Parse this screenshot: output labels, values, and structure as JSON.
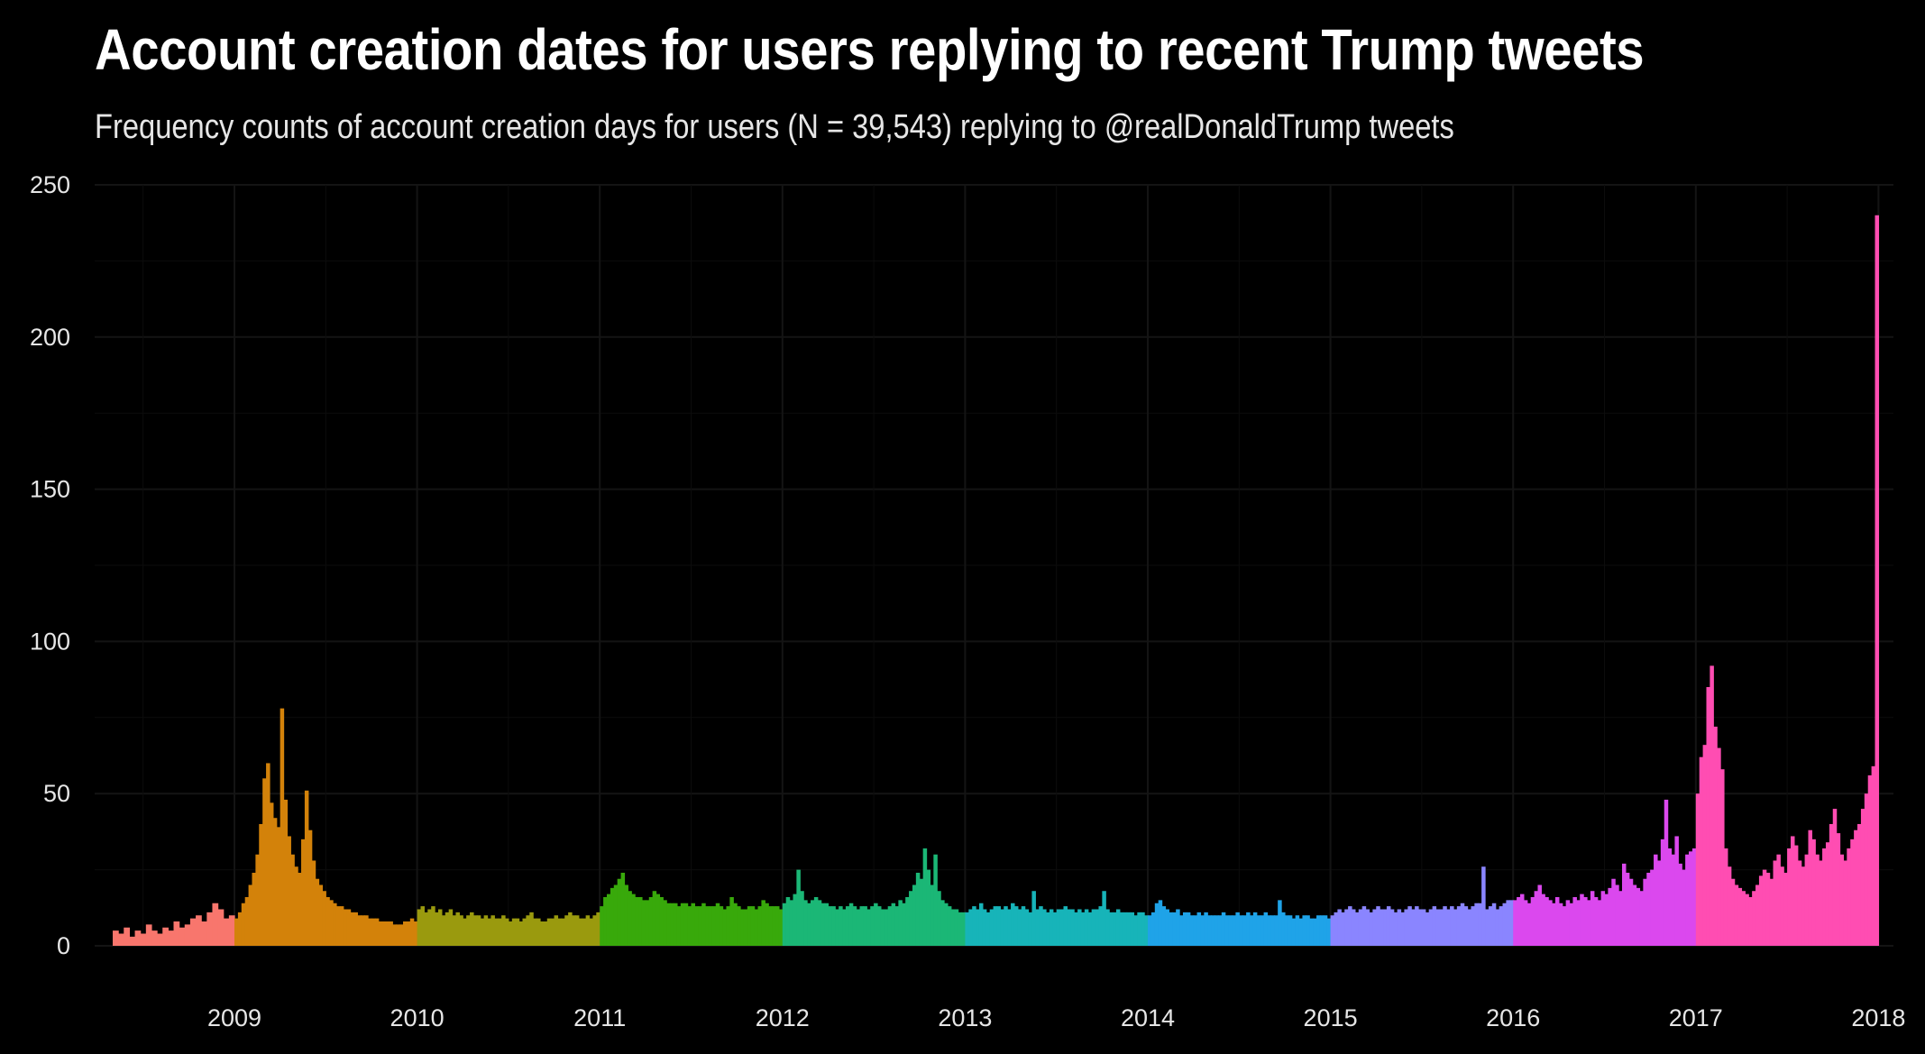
{
  "chart_data": {
    "type": "bar",
    "title": "Account creation dates for users replying to recent Trump tweets",
    "subtitle": "Frequency counts of account creation days for users (N = 39,543) replying to @realDonaldTrump tweets",
    "xlabel": "",
    "ylabel": "",
    "ylim": [
      0,
      250
    ],
    "xlim": [
      "2008-05-01",
      "2018-01-01"
    ],
    "grid": true,
    "background": "#000000",
    "y_ticks": [
      0,
      50,
      100,
      150,
      200,
      250
    ],
    "x_ticks": [
      "2009",
      "2010",
      "2011",
      "2012",
      "2013",
      "2014",
      "2015",
      "2016",
      "2017",
      "2018"
    ],
    "series": [
      {
        "year": "2008",
        "color": "#F8766D",
        "values": [
          5,
          4,
          6,
          3,
          5,
          4,
          7,
          5,
          4,
          6,
          5,
          8,
          6,
          7,
          9,
          10,
          8,
          11,
          14,
          12,
          9,
          10
        ]
      },
      {
        "year": "2009",
        "color": "#D3820A",
        "values": [
          9,
          11,
          14,
          16,
          20,
          24,
          30,
          40,
          55,
          60,
          47,
          42,
          39,
          78,
          48,
          36,
          30,
          26,
          24,
          35,
          51,
          38,
          28,
          22,
          20,
          18,
          16,
          15,
          14,
          13,
          13,
          12,
          12,
          11,
          11,
          10,
          10,
          10,
          9,
          9,
          9,
          8,
          8,
          8,
          8,
          7,
          7,
          7,
          8,
          8,
          9,
          8
        ]
      },
      {
        "year": "2010",
        "color": "#9A9A0E",
        "values": [
          12,
          13,
          11,
          12,
          13,
          11,
          12,
          10,
          11,
          12,
          10,
          11,
          10,
          9,
          10,
          11,
          10,
          10,
          9,
          10,
          9,
          10,
          9,
          9,
          10,
          9,
          8,
          9,
          9,
          8,
          9,
          10,
          11,
          9,
          9,
          8,
          8,
          9,
          9,
          10,
          9,
          9,
          10,
          11,
          10,
          10,
          9,
          9,
          10,
          9,
          10,
          11
        ]
      },
      {
        "year": "2011",
        "color": "#38A90B",
        "values": [
          13,
          16,
          17,
          19,
          20,
          22,
          24,
          20,
          18,
          17,
          16,
          16,
          15,
          15,
          16,
          18,
          17,
          16,
          15,
          14,
          14,
          14,
          13,
          14,
          14,
          13,
          14,
          13,
          13,
          14,
          13,
          13,
          13,
          14,
          13,
          12,
          13,
          16,
          14,
          13,
          12,
          12,
          13,
          13,
          12,
          13,
          15,
          14,
          13,
          13,
          13,
          12
        ]
      },
      {
        "year": "2012",
        "color": "#1BB776",
        "values": [
          14,
          16,
          15,
          17,
          25,
          18,
          15,
          14,
          15,
          16,
          15,
          14,
          14,
          13,
          13,
          12,
          13,
          12,
          13,
          14,
          13,
          12,
          13,
          13,
          12,
          13,
          14,
          13,
          12,
          12,
          13,
          14,
          13,
          15,
          14,
          16,
          18,
          20,
          24,
          22,
          32,
          25,
          20,
          30,
          18,
          15,
          14,
          13,
          12,
          12,
          11,
          11
        ]
      },
      {
        "year": "2013",
        "color": "#17B4B9",
        "values": [
          11,
          12,
          13,
          12,
          14,
          12,
          11,
          12,
          13,
          13,
          12,
          13,
          12,
          14,
          13,
          12,
          13,
          12,
          11,
          18,
          12,
          13,
          12,
          11,
          12,
          11,
          12,
          12,
          13,
          12,
          12,
          11,
          12,
          11,
          12,
          11,
          12,
          12,
          13,
          18,
          12,
          11,
          11,
          12,
          11,
          11,
          11,
          11,
          10,
          11,
          11,
          10
        ]
      },
      {
        "year": "2014",
        "color": "#1FA3E8",
        "values": [
          10,
          11,
          14,
          15,
          13,
          12,
          11,
          11,
          12,
          10,
          11,
          11,
          10,
          10,
          11,
          10,
          11,
          10,
          10,
          10,
          10,
          11,
          10,
          10,
          10,
          11,
          10,
          10,
          11,
          10,
          11,
          10,
          10,
          11,
          10,
          10,
          10,
          15,
          11,
          10,
          10,
          9,
          10,
          9,
          10,
          10,
          9,
          9,
          10,
          10,
          10,
          9
        ]
      },
      {
        "year": "2015",
        "color": "#8A85FF",
        "values": [
          10,
          11,
          12,
          11,
          12,
          13,
          12,
          11,
          12,
          13,
          12,
          11,
          12,
          13,
          12,
          12,
          13,
          12,
          11,
          12,
          11,
          12,
          13,
          12,
          13,
          12,
          12,
          11,
          12,
          13,
          12,
          12,
          13,
          12,
          13,
          12,
          13,
          14,
          13,
          12,
          13,
          14,
          14,
          26,
          12,
          13,
          14,
          12,
          13,
          14,
          15,
          15
        ]
      },
      {
        "year": "2016",
        "color": "#DB48EE",
        "values": [
          15,
          16,
          17,
          15,
          14,
          16,
          18,
          20,
          17,
          16,
          15,
          14,
          16,
          14,
          13,
          15,
          14,
          16,
          15,
          17,
          16,
          15,
          18,
          16,
          15,
          18,
          17,
          19,
          22,
          20,
          18,
          27,
          24,
          22,
          20,
          19,
          18,
          22,
          24,
          25,
          30,
          28,
          35,
          48,
          32,
          30,
          36,
          27,
          25,
          30,
          31,
          32
        ]
      },
      {
        "year": "2017",
        "color": "#FF4DB2",
        "values": [
          50,
          62,
          66,
          85,
          92,
          72,
          65,
          58,
          32,
          26,
          22,
          20,
          19,
          18,
          17,
          16,
          18,
          20,
          23,
          25,
          24,
          22,
          28,
          30,
          26,
          24,
          32,
          36,
          33,
          28,
          26,
          30,
          38,
          35,
          30,
          28,
          32,
          34,
          40,
          45,
          37,
          30,
          28,
          32,
          35,
          38,
          40,
          45,
          50,
          56,
          59,
          240
        ]
      }
    ]
  }
}
